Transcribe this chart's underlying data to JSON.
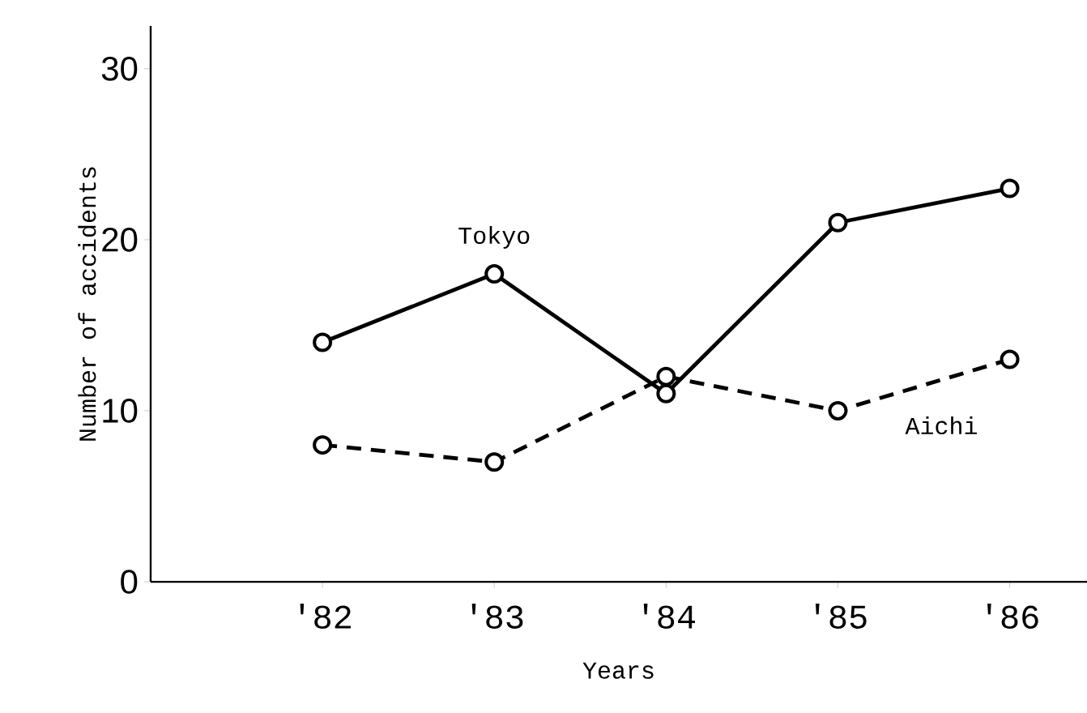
{
  "chart_data": {
    "type": "line",
    "xlabel": "Years",
    "ylabel": "Number of accidents",
    "categories": [
      "'82",
      "'83",
      "'84",
      "'85",
      "'86"
    ],
    "ylim": [
      0,
      32.5
    ],
    "yticks": [
      0,
      10,
      20,
      30
    ],
    "marker": "circle",
    "series": [
      {
        "name": "Tokyo",
        "color": "#000000",
        "line_style": "solid",
        "values": [
          14,
          18,
          11,
          21,
          23
        ]
      },
      {
        "name": "Aichi",
        "color": "#000000",
        "line_style": "dashed",
        "values": [
          8,
          7,
          12,
          10,
          13
        ]
      }
    ]
  }
}
